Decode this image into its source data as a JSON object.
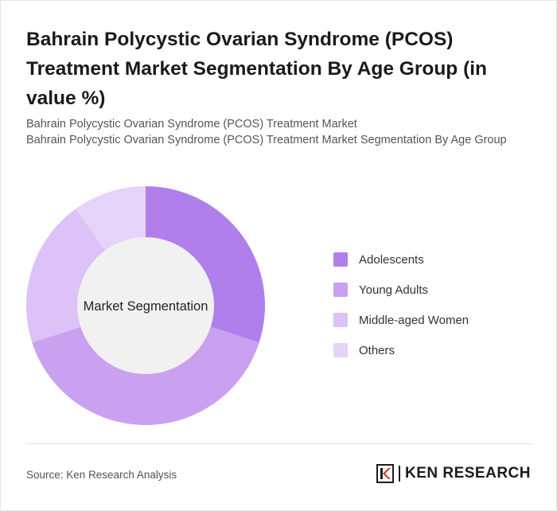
{
  "title": "Bahrain Polycystic Ovarian Syndrome (PCOS) Treatment Market Segmentation By Age Group (in value %)",
  "subtitle_line1": "Bahrain Polycystic Ovarian Syndrome (PCOS) Treatment Market",
  "subtitle_line2": "Bahrain Polycystic Ovarian Syndrome (PCOS) Treatment Market Segmentation By Age Group",
  "chart_data": {
    "type": "pie",
    "variant": "donut",
    "center_label": "Market Segmentation",
    "categories": [
      "Adolescents",
      "Young Adults",
      "Middle-aged Women",
      "Others"
    ],
    "values": [
      30,
      40,
      20,
      10
    ],
    "colors": [
      "#b07fec",
      "#c9a1f0",
      "#dcc2f6",
      "#e6d3f8"
    ],
    "legend_position": "right"
  },
  "footer": {
    "source": "Source: Ken Research Analysis",
    "brand_name": "KEN RESEARCH"
  }
}
